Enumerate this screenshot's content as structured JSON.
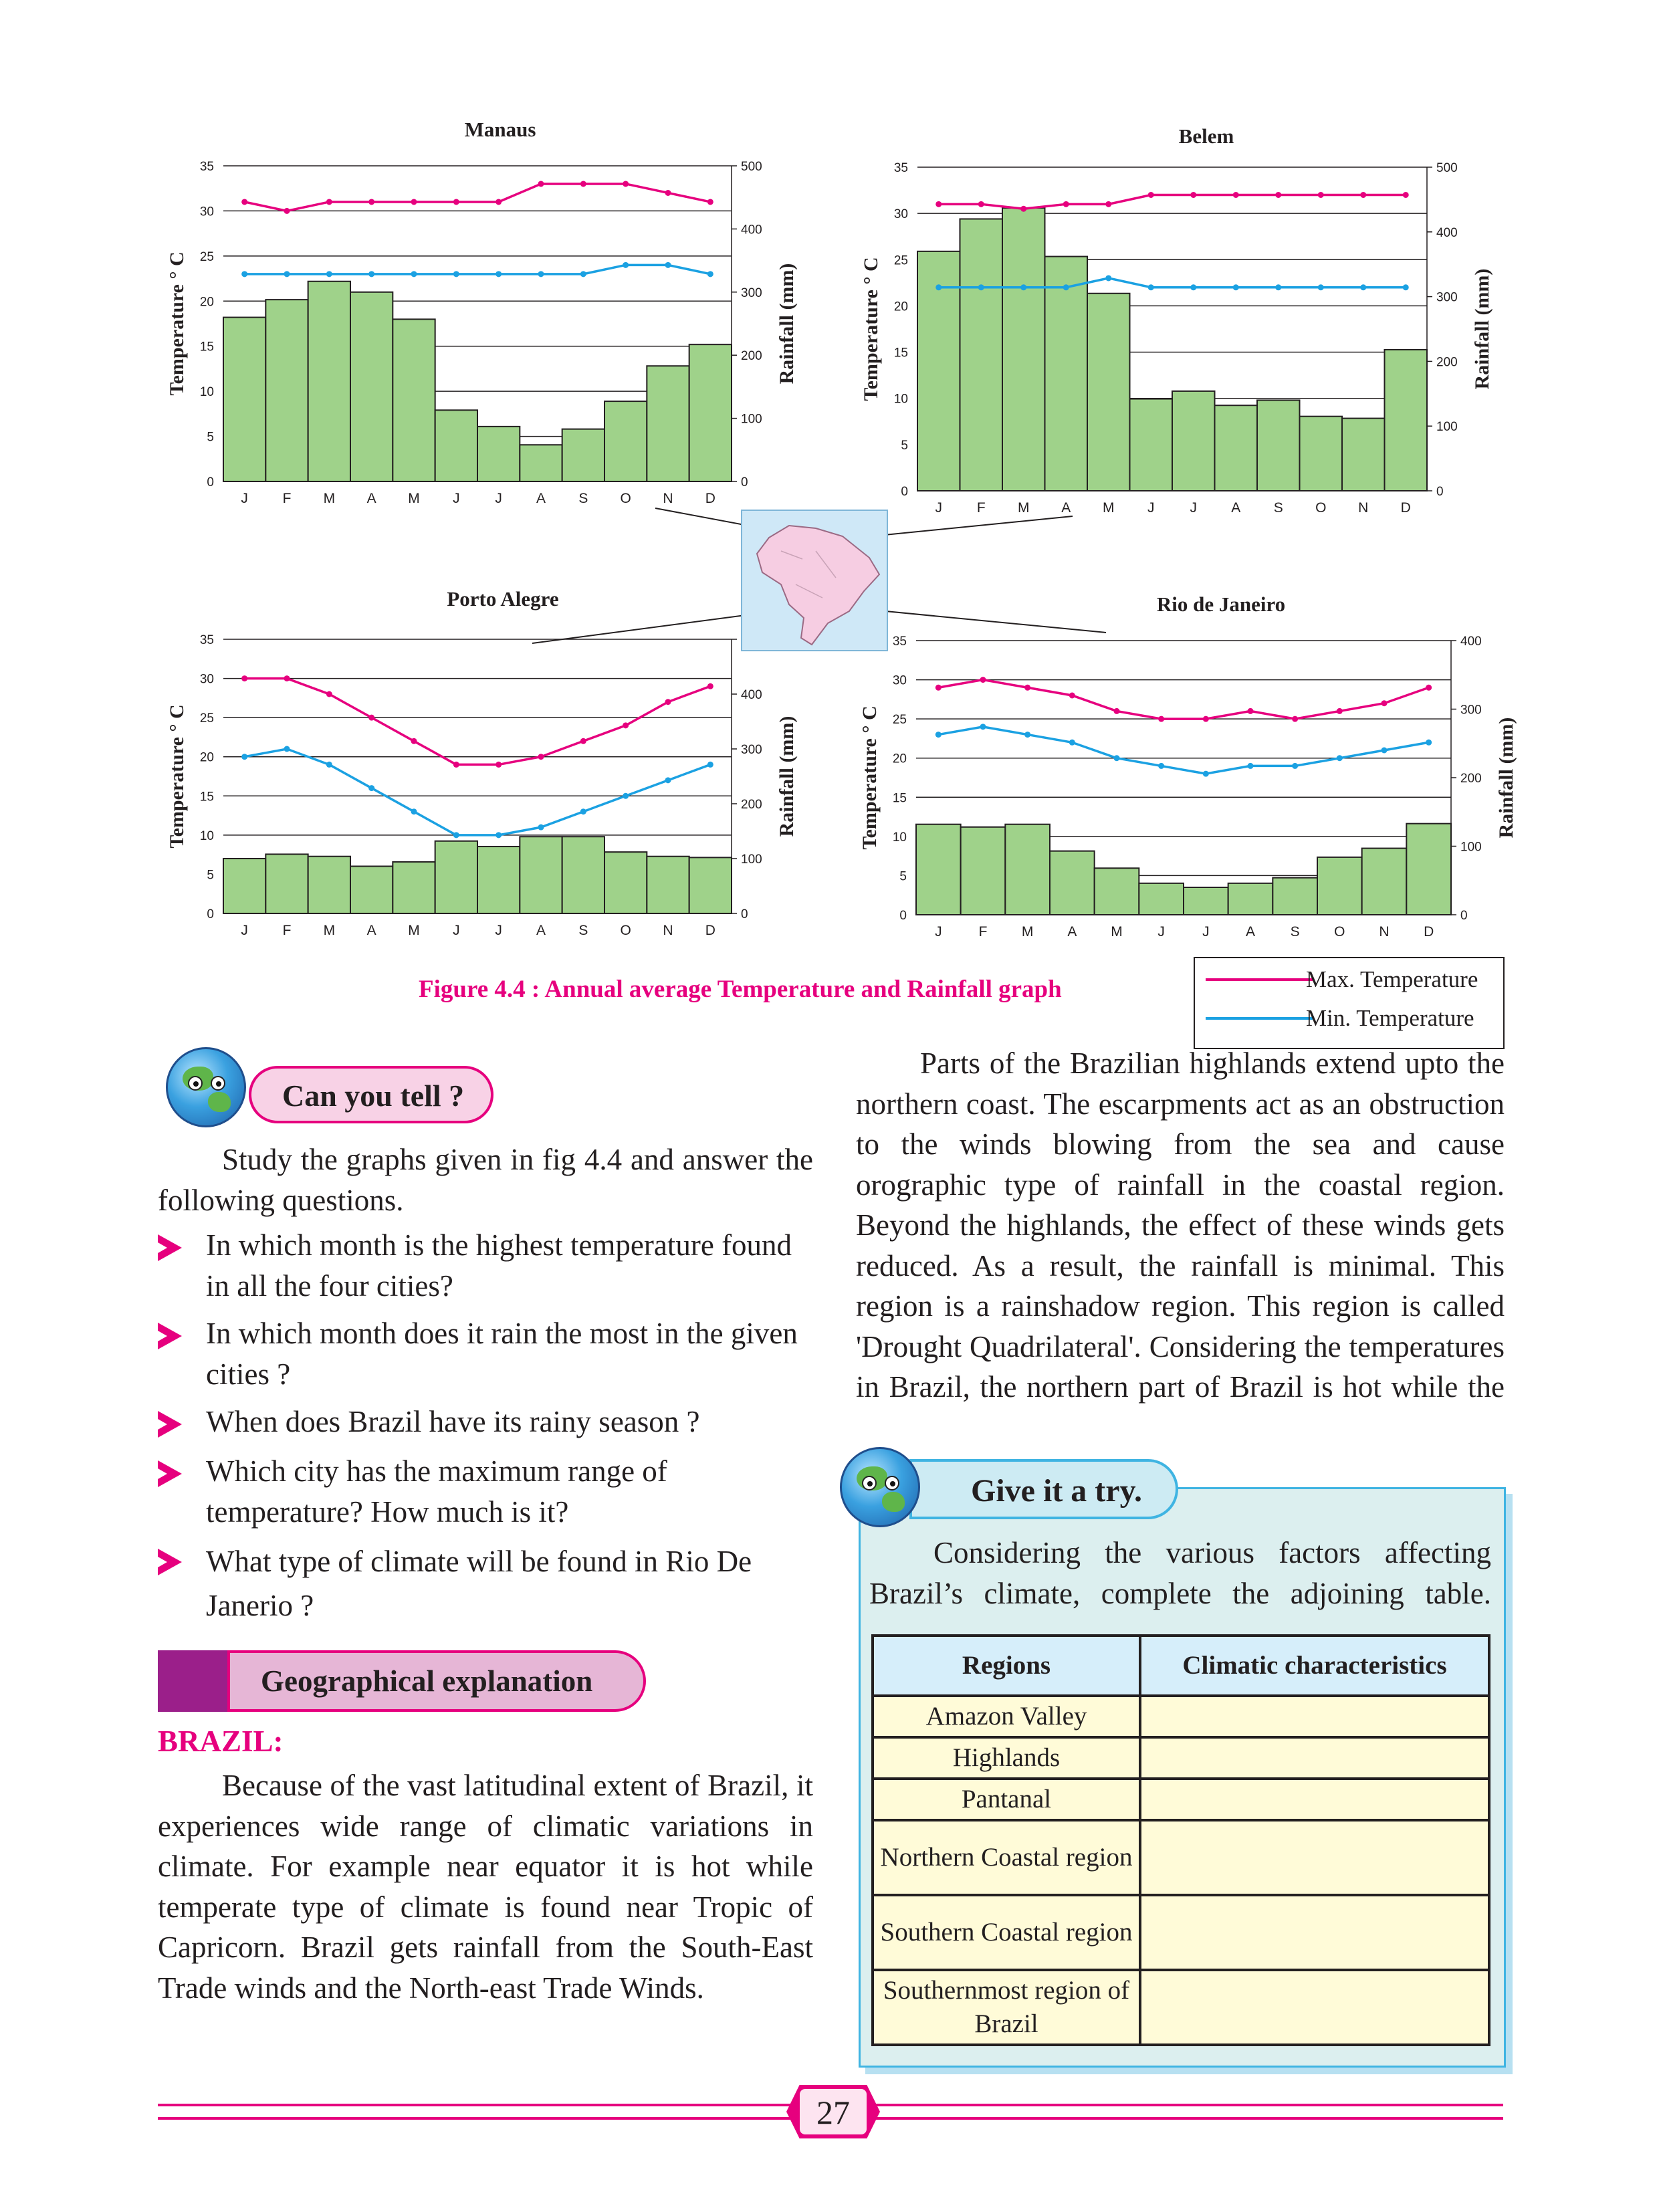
{
  "charts": {
    "manaus": {
      "title": "Manaus"
    },
    "belem": {
      "title": "Belem"
    },
    "porto_alegre": {
      "title": "Porto Alegre"
    },
    "rio": {
      "title": "Rio de Janeiro"
    }
  },
  "axis": {
    "temperature_label": "Temperature ° C",
    "rainfall_label": "Rainfall (mm)"
  },
  "colors": {
    "max_temp": "#e6007e",
    "min_temp": "#1ba1e2",
    "bars": "#9fd28a",
    "bar_edge": "#231f20"
  },
  "chart_data": [
    {
      "type": "bar",
      "title": "Manaus",
      "categories": [
        "J",
        "F",
        "M",
        "A",
        "M",
        "J",
        "J",
        "A",
        "S",
        "O",
        "N",
        "D"
      ],
      "ylabel": "Temperature ° C",
      "y2label": "Rainfall (mm)",
      "ylim": [
        0,
        35
      ],
      "y2lim": [
        0,
        500
      ],
      "yticks": [
        0,
        5,
        10,
        15,
        20,
        25,
        30,
        35
      ],
      "y2ticks": [
        0,
        100,
        200,
        300,
        400,
        500
      ],
      "rainfall": [
        260,
        288,
        317,
        300,
        257,
        113,
        87,
        58,
        83,
        127,
        183,
        217
      ],
      "max_temp": [
        31,
        30,
        31,
        31,
        31,
        31,
        31,
        33,
        33,
        33,
        32,
        31
      ],
      "min_temp": [
        23,
        23,
        23,
        23,
        23,
        23,
        23,
        23,
        23,
        24,
        24,
        23
      ]
    },
    {
      "type": "bar",
      "title": "Belem",
      "categories": [
        "J",
        "F",
        "M",
        "A",
        "M",
        "J",
        "J",
        "A",
        "S",
        "O",
        "N",
        "D"
      ],
      "ylabel": "Temperature ° C",
      "y2label": "Rainfall (mm)",
      "ylim": [
        0,
        35
      ],
      "y2lim": [
        0,
        500
      ],
      "yticks": [
        0,
        5,
        10,
        15,
        20,
        25,
        30,
        35
      ],
      "y2ticks": [
        0,
        100,
        200,
        300,
        400,
        500
      ],
      "rainfall": [
        370,
        420,
        437,
        362,
        305,
        142,
        154,
        132,
        140,
        115,
        112,
        218
      ],
      "max_temp": [
        31,
        31,
        30.5,
        31,
        31,
        32,
        32,
        32,
        32,
        32,
        32,
        32
      ],
      "min_temp": [
        22,
        22,
        22,
        22,
        23,
        22,
        22,
        22,
        22,
        22,
        22,
        22
      ]
    },
    {
      "type": "bar",
      "title": "Porto Alegre",
      "categories": [
        "J",
        "F",
        "M",
        "A",
        "M",
        "J",
        "J",
        "A",
        "S",
        "O",
        "N",
        "D"
      ],
      "ylabel": "Temperature ° C",
      "y2label": "Rainfall (mm)",
      "ylim": [
        0,
        35
      ],
      "y2lim": [
        0,
        500
      ],
      "yticks": [
        0,
        5,
        10,
        15,
        20,
        25,
        30,
        35
      ],
      "y2ticks": [
        0,
        100,
        200,
        300,
        400,
        500
      ],
      "rainfall": [
        100,
        108,
        104,
        86,
        94,
        132,
        122,
        140,
        140,
        112,
        104,
        102
      ],
      "max_temp": [
        30,
        30,
        28,
        25,
        22,
        19,
        19,
        20,
        22,
        24,
        27,
        29
      ],
      "min_temp": [
        20,
        21,
        19,
        16,
        13,
        10,
        10,
        11,
        13,
        15,
        17,
        19
      ]
    },
    {
      "type": "bar",
      "title": "Rio de Janeiro",
      "categories": [
        "J",
        "F",
        "M",
        "A",
        "M",
        "J",
        "J",
        "A",
        "S",
        "O",
        "N",
        "D"
      ],
      "ylabel": "Temperature ° C",
      "y2label": "Rainfall (mm)",
      "ylim": [
        0,
        35
      ],
      "y2lim": [
        0,
        400
      ],
      "yticks": [
        0,
        5,
        10,
        15,
        20,
        25,
        30,
        35
      ],
      "y2ticks": [
        0,
        100,
        200,
        300,
        400
      ],
      "rainfall": [
        132,
        128,
        132,
        93,
        68,
        46,
        40,
        46,
        54,
        84,
        97,
        133
      ],
      "max_temp": [
        29,
        30,
        29,
        28,
        26,
        25,
        25,
        26,
        25,
        26,
        27,
        29
      ],
      "min_temp": [
        23,
        24,
        23,
        22,
        20,
        19,
        18,
        19,
        19,
        20,
        21,
        22
      ]
    }
  ],
  "figure": {
    "caption": "Figure 4.4 : Annual average Temperature and Rainfall graph",
    "legend_max": "Max. Temperature",
    "legend_min": "Min. Temperature"
  },
  "can_you_tell": {
    "label": "Can you tell ?",
    "intro": "Study the graphs given in fig 4.4 and answer the following questions.",
    "questions": [
      "In which month is the highest temperature found in all the four cities?",
      "In which month does it rain the most in the given cities ?",
      "When does Brazil have its rainy season ?",
      "Which city has the maximum range of temperature? How much is it?",
      "What type of climate will be found in Rio De Janerio ?"
    ]
  },
  "geo": {
    "label": "Geographical explanation",
    "heading": "BRAZIL:",
    "paragraph": "Because of the vast latitudinal extent of Brazil, it experiences wide range of climatic variations in climate. For example near equator it is hot while temperate type of climate is found near Tropic of Capricorn. Brazil gets rainfall from the South-East Trade winds and the North-east Trade Winds."
  },
  "right_paragraph": "Parts of the Brazilian highlands extend upto the northern coast. The escarpments act as an obstruction to the winds blowing from the sea and cause orographic type of rainfall in the coastal region. Beyond the highlands, the effect of these winds gets reduced. As a result, the rainfall is minimal. This region is a rainshadow region. This region is called 'Drought Quadrilateral'. Considering the temperatures in Brazil, the northern part of Brazil is hot while the",
  "try": {
    "label": "Give it a try.",
    "intro": "Considering the various factors affecting Brazil’s climate, complete the adjoining table.",
    "headers": [
      "Regions",
      "Climatic characteristics"
    ],
    "rows": [
      "Amazon Valley",
      "Highlands",
      "Pantanal",
      "Northern Coastal region",
      "Southern Coastal region",
      "Southernmost region of Brazil"
    ]
  },
  "page_number": "27"
}
